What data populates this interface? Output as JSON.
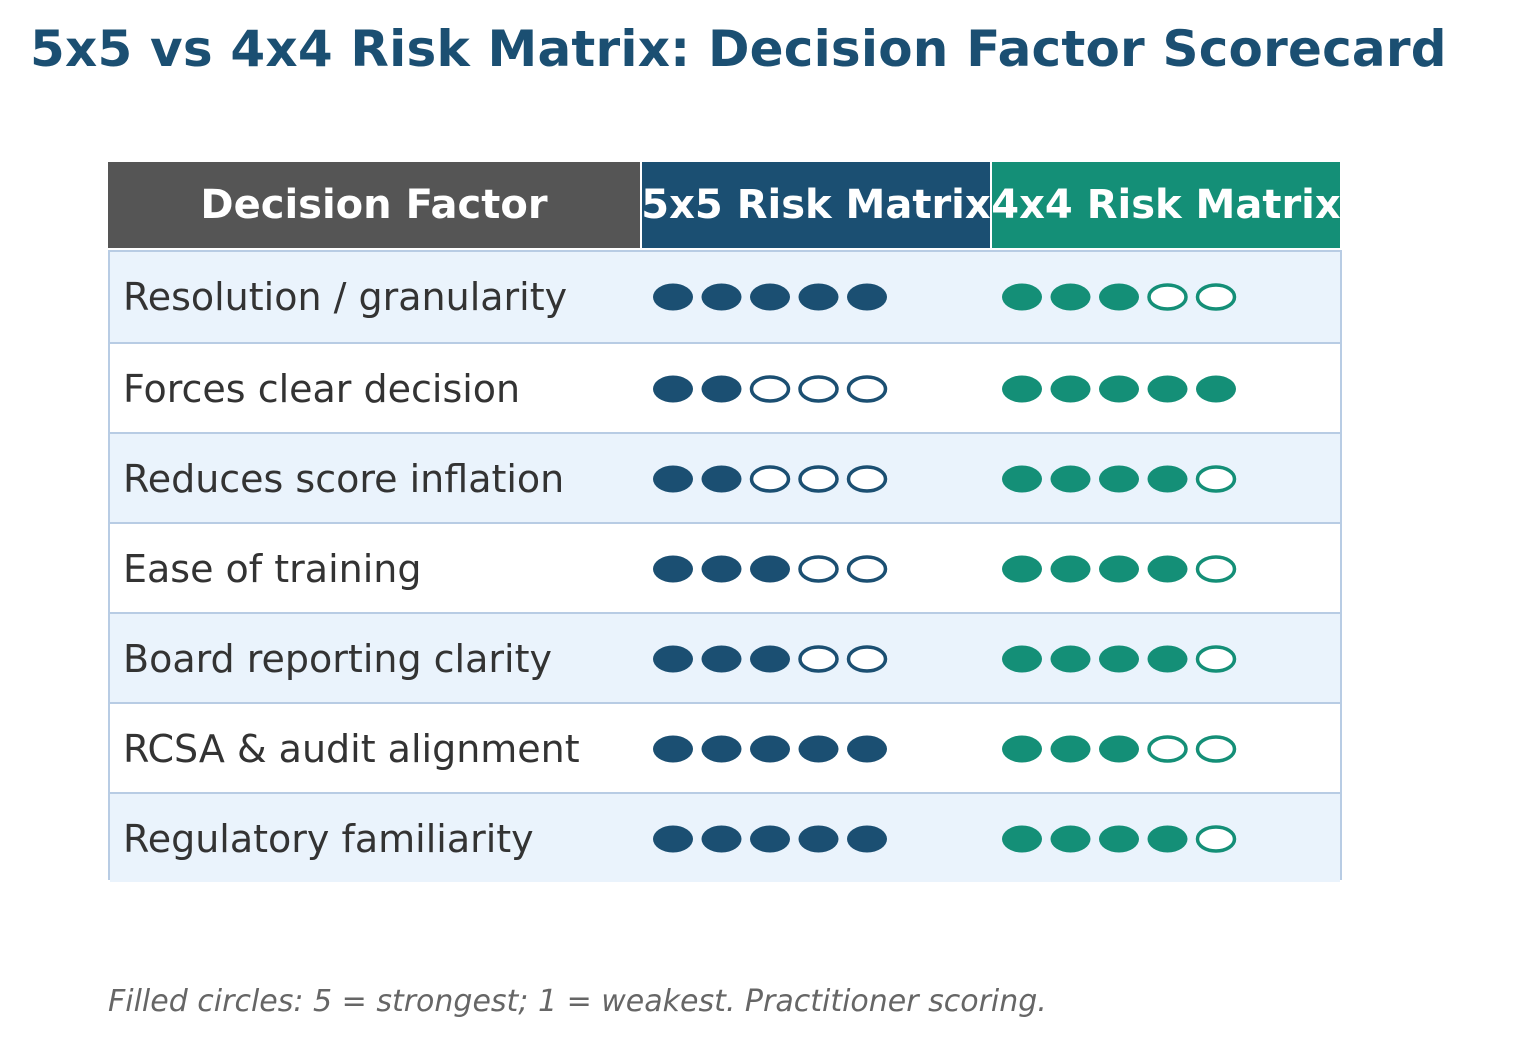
{
  "title": "5x5 vs 4x4 Risk Matrix: Decision Factor Scorecard",
  "footnote": "Filled circles: 5 = strongest; 1 = weakest. Practitioner scoring.",
  "colors": {
    "title": "#1b4f72",
    "factor_header": "#555555",
    "matrix_5x5": "#1b4f72",
    "matrix_4x4": "#148f77",
    "row_alt": "#eaf3fc",
    "grid": "#b8cce4"
  },
  "chart_data": {
    "type": "table",
    "title": "5x5 vs 4x4 Risk Matrix: Decision Factor Scorecard",
    "max_score": 5,
    "columns": [
      "Decision Factor",
      "5x5 Risk Matrix",
      "4x4 Risk Matrix"
    ],
    "rows": [
      {
        "factor": "Resolution / granularity",
        "score_5x5": 5,
        "score_4x4": 3
      },
      {
        "factor": "Forces clear decision",
        "score_5x5": 2,
        "score_4x4": 5
      },
      {
        "factor": "Reduces score inflation",
        "score_5x5": 2,
        "score_4x4": 4
      },
      {
        "factor": "Ease of training",
        "score_5x5": 3,
        "score_4x4": 4
      },
      {
        "factor": "Board reporting clarity",
        "score_5x5": 3,
        "score_4x4": 4
      },
      {
        "factor": "RCSA & audit alignment",
        "score_5x5": 5,
        "score_4x4": 3
      },
      {
        "factor": "Regulatory familiarity",
        "score_5x5": 5,
        "score_4x4": 4
      }
    ]
  }
}
